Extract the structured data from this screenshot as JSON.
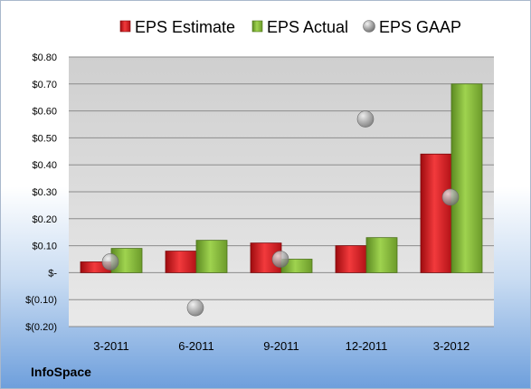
{
  "company_label": "InfoSpace",
  "colors": {
    "estimate": "#e41a1c",
    "actual": "#8bc53f",
    "gaap": "#a6a6a6",
    "plot_bg_top": "#cfcfcf",
    "plot_bg_bottom": "#e8e8e8"
  },
  "chart_data": {
    "type": "bar",
    "categories": [
      "3-2011",
      "6-2011",
      "9-2011",
      "12-2011",
      "3-2012"
    ],
    "series": [
      {
        "name": "EPS Estimate",
        "kind": "bar",
        "values": [
          0.04,
          0.08,
          0.11,
          0.1,
          0.44
        ]
      },
      {
        "name": "EPS Actual",
        "kind": "bar",
        "values": [
          0.09,
          0.12,
          0.05,
          0.13,
          0.7
        ]
      },
      {
        "name": "EPS GAAP",
        "kind": "marker",
        "values": [
          0.04,
          -0.13,
          0.05,
          0.57,
          0.28
        ]
      }
    ],
    "ylim": [
      -0.2,
      0.8
    ],
    "yticks": [
      0.8,
      0.7,
      0.6,
      0.5,
      0.4,
      0.3,
      0.2,
      0.1,
      0.0,
      -0.1,
      -0.2
    ],
    "ytick_labels": [
      "$0.80",
      "$0.70",
      "$0.60",
      "$0.50",
      "$0.40",
      "$0.30",
      "$0.20",
      "$0.10",
      "$-",
      "$(0.10)",
      "$(0.20)"
    ],
    "legend_position": "top",
    "grid": true
  }
}
